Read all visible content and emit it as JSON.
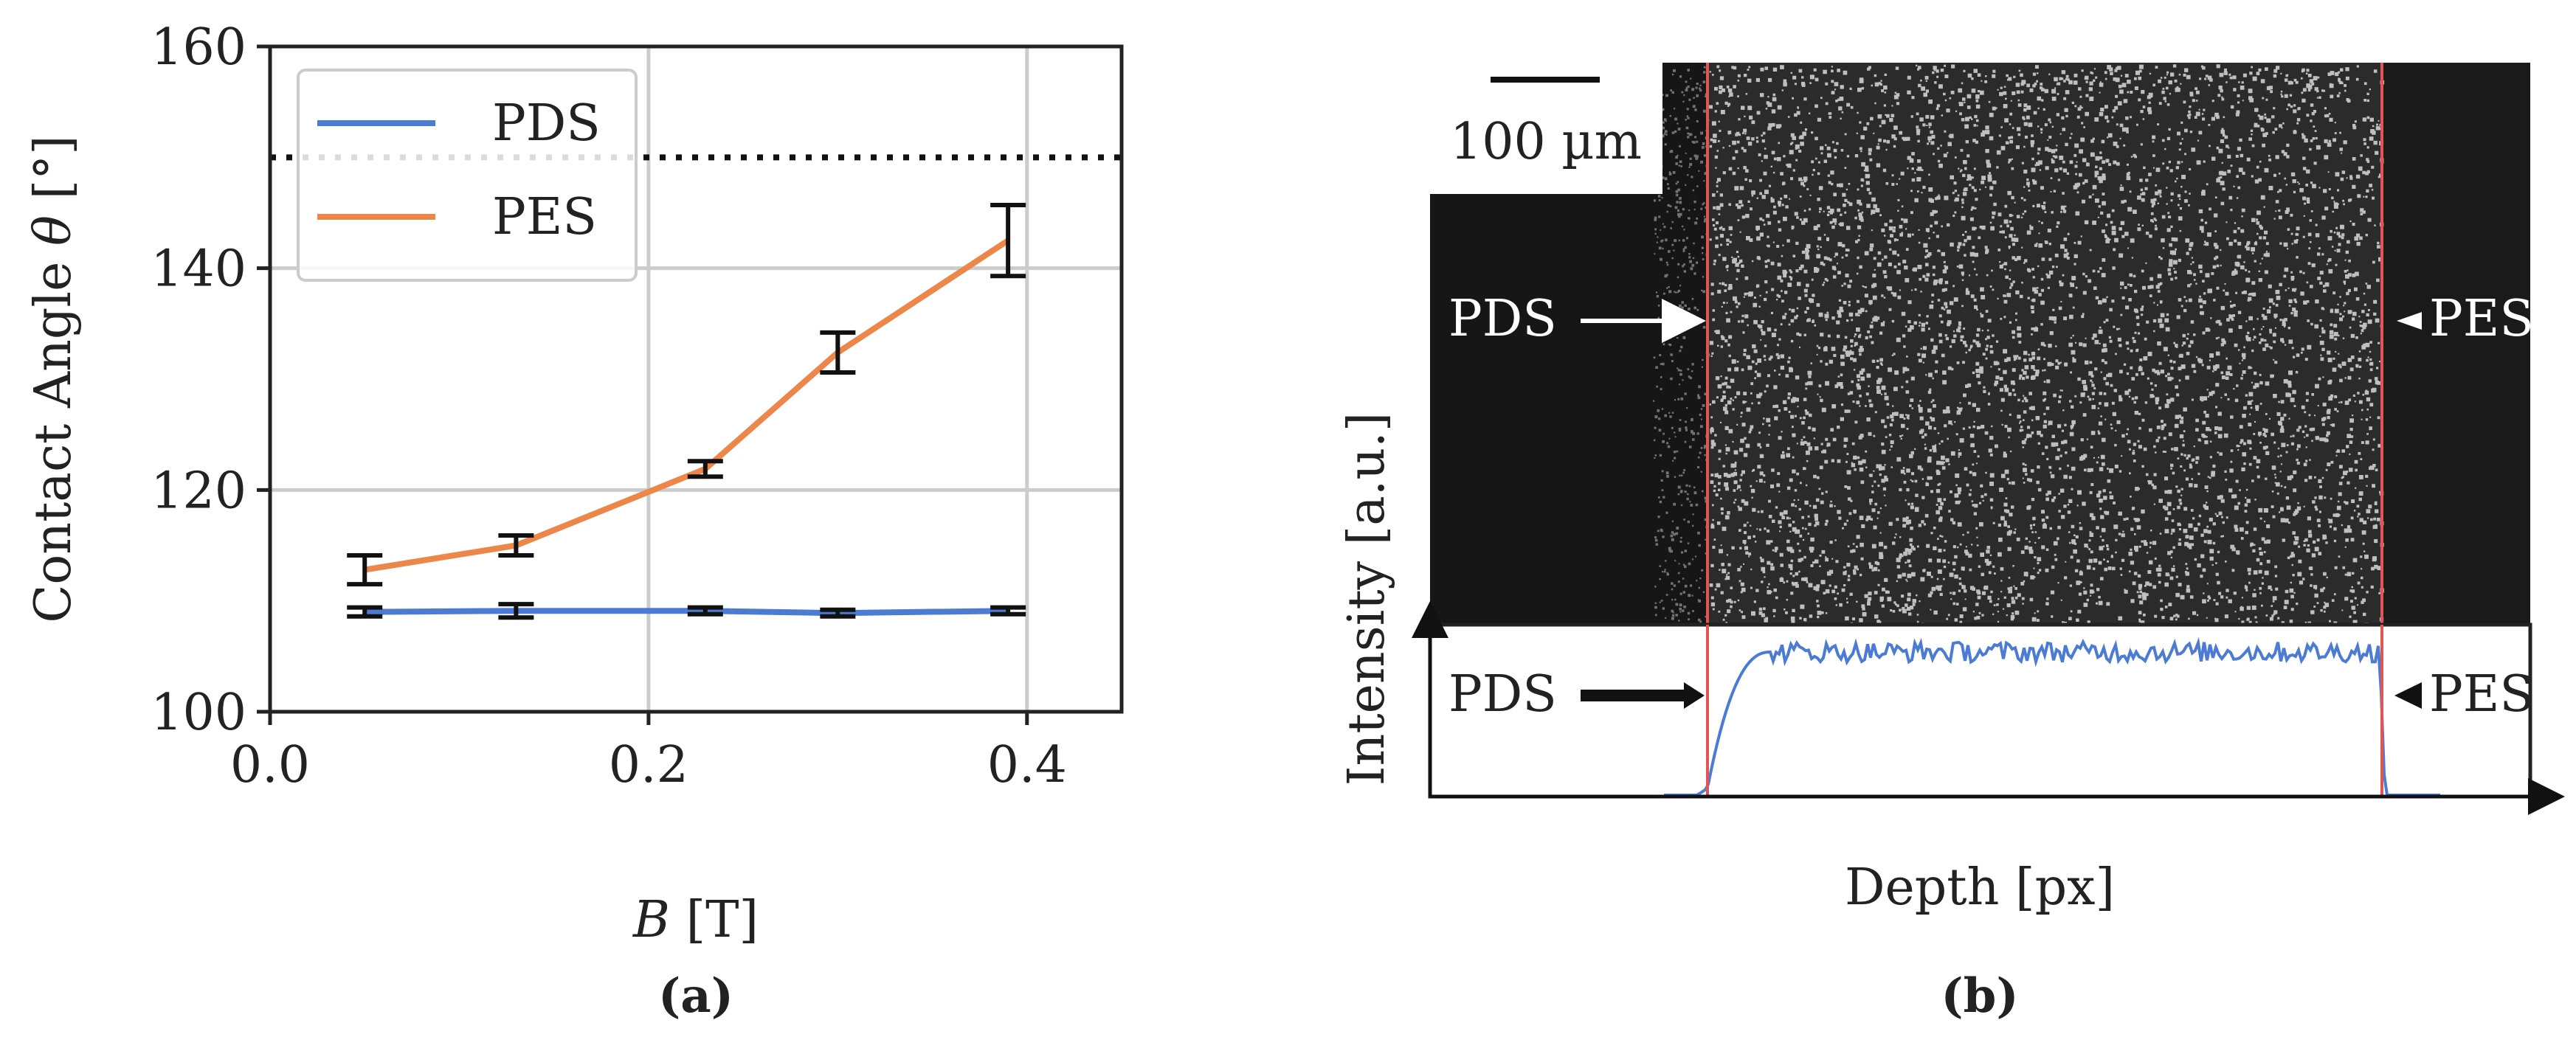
{
  "chart_data": [
    {
      "type": "line",
      "panel_label": "(a)",
      "xlabel": "B [T]",
      "xlabel_var": "B",
      "xlabel_unit": " [T]",
      "ylabel": "Contact Angle θ [°]",
      "ylabel_text": "Contact Angle ",
      "ylabel_var": "θ",
      "ylabel_unit": " [°]",
      "xlim": [
        0,
        0.45
      ],
      "ylim": [
        100,
        160
      ],
      "xticks": [
        0.0,
        0.2,
        0.4
      ],
      "xtick_labels": [
        "0.0",
        "0.2",
        "0.4"
      ],
      "yticks": [
        100,
        120,
        140,
        160
      ],
      "ytick_labels": [
        "100",
        "120",
        "140",
        "160"
      ],
      "grid": true,
      "legend_position": "top-left",
      "reference_line": {
        "y": 150,
        "style": "dotted"
      },
      "series": [
        {
          "name": "PDS",
          "color": "#4c7bd4",
          "x": [
            0.05,
            0.13,
            0.23,
            0.3,
            0.39
          ],
          "y": [
            109.0,
            109.1,
            109.1,
            108.9,
            109.1
          ],
          "yerr": [
            0.4,
            0.6,
            0.3,
            0.3,
            0.3
          ]
        },
        {
          "name": "PES",
          "color": "#ec8649",
          "x": [
            0.05,
            0.13,
            0.23,
            0.3,
            0.39
          ],
          "y": [
            112.8,
            115.0,
            121.9,
            132.4,
            142.5
          ],
          "yerr": [
            1.3,
            0.9,
            0.7,
            1.8,
            3.2
          ]
        }
      ]
    },
    {
      "type": "line",
      "panel_label": "(b)",
      "xlabel": "Depth [px]",
      "ylabel": "Intensity [a.u.]",
      "scale_bar_label": "100 µm",
      "image_labels": {
        "left": "PDS",
        "right": "PES"
      },
      "profile_labels": {
        "left": "PDS",
        "right": "PES"
      },
      "interface_line_color": "#e05555",
      "profile_color": "#4c7bd4",
      "profile_description_levels": {
        "low": 0.0,
        "plateau": 0.84
      }
    }
  ]
}
